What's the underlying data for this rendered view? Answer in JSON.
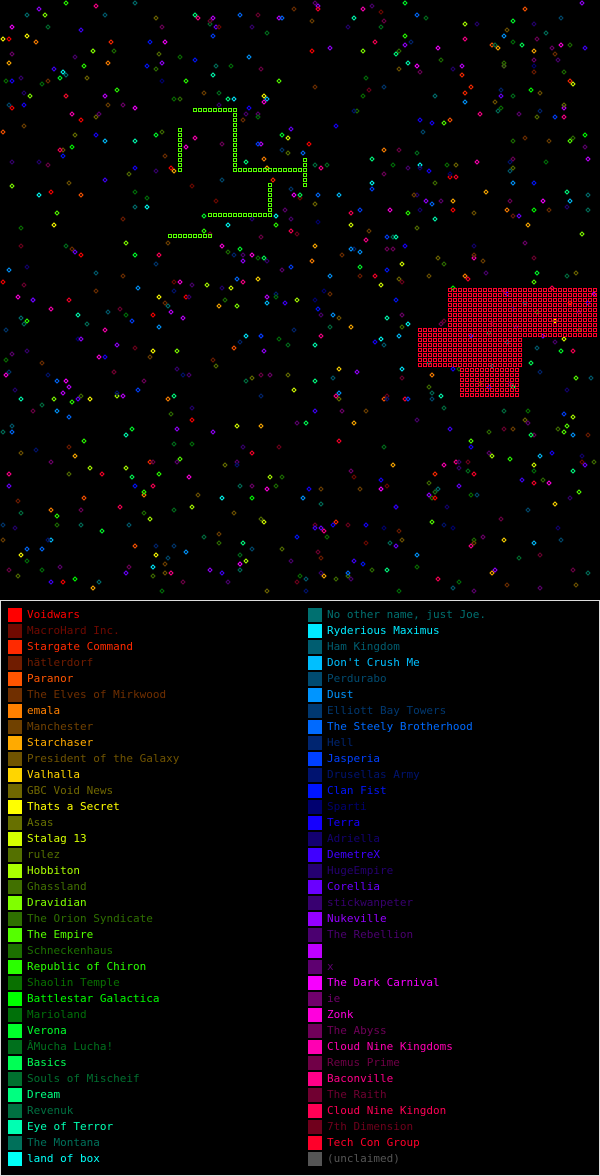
{
  "legend": {
    "left": [
      {
        "name": "Voidwars",
        "color": "hsl(0,100%,50%)"
      },
      {
        "name": "MacroHard Inc.",
        "color": "hsl(5,100%,22%)"
      },
      {
        "name": "Stargate Command",
        "color": "hsl(10,100%,50%)"
      },
      {
        "name": "hätlerdorf",
        "color": "hsl(15,100%,22%)"
      },
      {
        "name": "Paranor",
        "color": "hsl(20,100%,50%)"
      },
      {
        "name": "The Elves of Mirkwood",
        "color": "hsl(25,100%,22%)"
      },
      {
        "name": "emala",
        "color": "hsl(30,100%,50%)"
      },
      {
        "name": "Manchester",
        "color": "hsl(35,100%,22%)"
      },
      {
        "name": "Starchaser",
        "color": "hsl(40,100%,50%)"
      },
      {
        "name": "President of the Galaxy",
        "color": "hsl(45,100%,22%)"
      },
      {
        "name": "Valhalla",
        "color": "hsl(50,100%,50%)"
      },
      {
        "name": "GBC Void News",
        "color": "hsl(55,100%,22%)"
      },
      {
        "name": "Thats a Secret",
        "color": "hsl(60,100%,50%)"
      },
      {
        "name": "Asas",
        "color": "hsl(65,100%,22%)"
      },
      {
        "name": "Stalag 13",
        "color": "hsl(70,100%,50%)"
      },
      {
        "name": "rulez",
        "color": "hsl(75,100%,22%)"
      },
      {
        "name": "Hobbiton",
        "color": "hsl(80,100%,50%)"
      },
      {
        "name": "Ghassland",
        "color": "hsl(85,100%,22%)"
      },
      {
        "name": "Dravidian",
        "color": "hsl(90,100%,50%)"
      },
      {
        "name": "The Orion Syndicate",
        "color": "hsl(95,100%,22%)"
      },
      {
        "name": "The Empire",
        "color": "hsl(100,100%,50%)"
      },
      {
        "name": "Schneckenhaus",
        "color": "hsl(105,100%,22%)"
      },
      {
        "name": "Republic of Chiron",
        "color": "hsl(110,100%,50%)"
      },
      {
        "name": "Shaolin Temple",
        "color": "hsl(115,100%,22%)"
      },
      {
        "name": "Battlestar Galactica",
        "color": "hsl(120,100%,50%)"
      },
      {
        "name": "Marioland",
        "color": "hsl(125,100%,22%)"
      },
      {
        "name": "Verona",
        "color": "hsl(130,100%,50%)"
      },
      {
        "name": "ÂMucha Lucha!",
        "color": "hsl(135,100%,22%)"
      },
      {
        "name": "Basics",
        "color": "hsl(140,100%,50%)"
      },
      {
        "name": "Souls of Mischeif",
        "color": "hsl(145,100%,22%)"
      },
      {
        "name": "Dream",
        "color": "hsl(150,100%,50%)"
      },
      {
        "name": "Revenuk",
        "color": "hsl(155,100%,22%)"
      },
      {
        "name": "Eye of Terror",
        "color": "hsl(162,100%,50%)"
      },
      {
        "name": "The Montana",
        "color": "hsl(168,100%,22%)"
      },
      {
        "name": "land of box",
        "color": "hsl(178,100%,50%)"
      }
    ],
    "right": [
      {
        "name": "No other name, just Joe.",
        "color": "hsl(180,100%,22%)"
      },
      {
        "name": "Ryderious Maximus",
        "color": "hsl(185,100%,50%)"
      },
      {
        "name": "Ham Kingdom",
        "color": "hsl(190,100%,22%)"
      },
      {
        "name": "Don't Crush Me",
        "color": "hsl(195,100%,50%)"
      },
      {
        "name": "Perdurabo",
        "color": "hsl(200,100%,22%)"
      },
      {
        "name": "Dust",
        "color": "hsl(205,100%,50%)"
      },
      {
        "name": "Elliott Bay Towers",
        "color": "hsl(210,100%,22%)"
      },
      {
        "name": "The Steely Brotherhood",
        "color": "hsl(215,100%,50%)"
      },
      {
        "name": "Hell",
        "color": "hsl(220,100%,22%)"
      },
      {
        "name": "Jasperia",
        "color": "hsl(225,100%,50%)"
      },
      {
        "name": "Drusellas Army",
        "color": "hsl(230,100%,22%)"
      },
      {
        "name": "Clan Fist",
        "color": "hsl(235,100%,50%)"
      },
      {
        "name": "Sparti",
        "color": "hsl(240,100%,22%)"
      },
      {
        "name": "Terra",
        "color": "hsl(245,100%,50%)"
      },
      {
        "name": "Adriella",
        "color": "hsl(250,100%,22%)"
      },
      {
        "name": "DemetreX",
        "color": "hsl(255,100%,50%)"
      },
      {
        "name": "HugeEmpire",
        "color": "hsl(260,100%,22%)"
      },
      {
        "name": "Corellia",
        "color": "hsl(265,100%,50%)"
      },
      {
        "name": "stickwanpeter",
        "color": "hsl(270,100%,22%)"
      },
      {
        "name": "Nukeville",
        "color": "hsl(275,100%,50%)"
      },
      {
        "name": "The Rebellion",
        "color": "hsl(280,100%,22%)"
      },
      {
        "name": null,
        "color": "hsl(285,100%,50%)"
      },
      {
        "name": "x",
        "color": "hsl(290,100%,22%)"
      },
      {
        "name": "The Dark Carnival",
        "color": "hsl(298,100%,50%)"
      },
      {
        "name": "ie",
        "color": "hsl(302,100%,22%)"
      },
      {
        "name": "Zonk",
        "color": "hsl(308,100%,50%)"
      },
      {
        "name": "The Abyss",
        "color": "hsl(312,100%,22%)"
      },
      {
        "name": "Cloud Nine Kingdoms",
        "color": "hsl(318,100%,50%)"
      },
      {
        "name": "Remus Prime",
        "color": "hsl(322,100%,22%)"
      },
      {
        "name": "Baconville",
        "color": "hsl(328,100%,50%)"
      },
      {
        "name": "The Raith",
        "color": "hsl(334,100%,22%)"
      },
      {
        "name": "Cloud Nine Kingdon",
        "color": "hsl(340,100%,50%)"
      },
      {
        "name": "7th Dimension",
        "color": "hsl(345,100%,22%)"
      },
      {
        "name": "Tech Con Group",
        "color": "hsl(350,100%,50%)"
      },
      {
        "name": "(unclaimed)",
        "color": "#555555"
      }
    ]
  }
}
